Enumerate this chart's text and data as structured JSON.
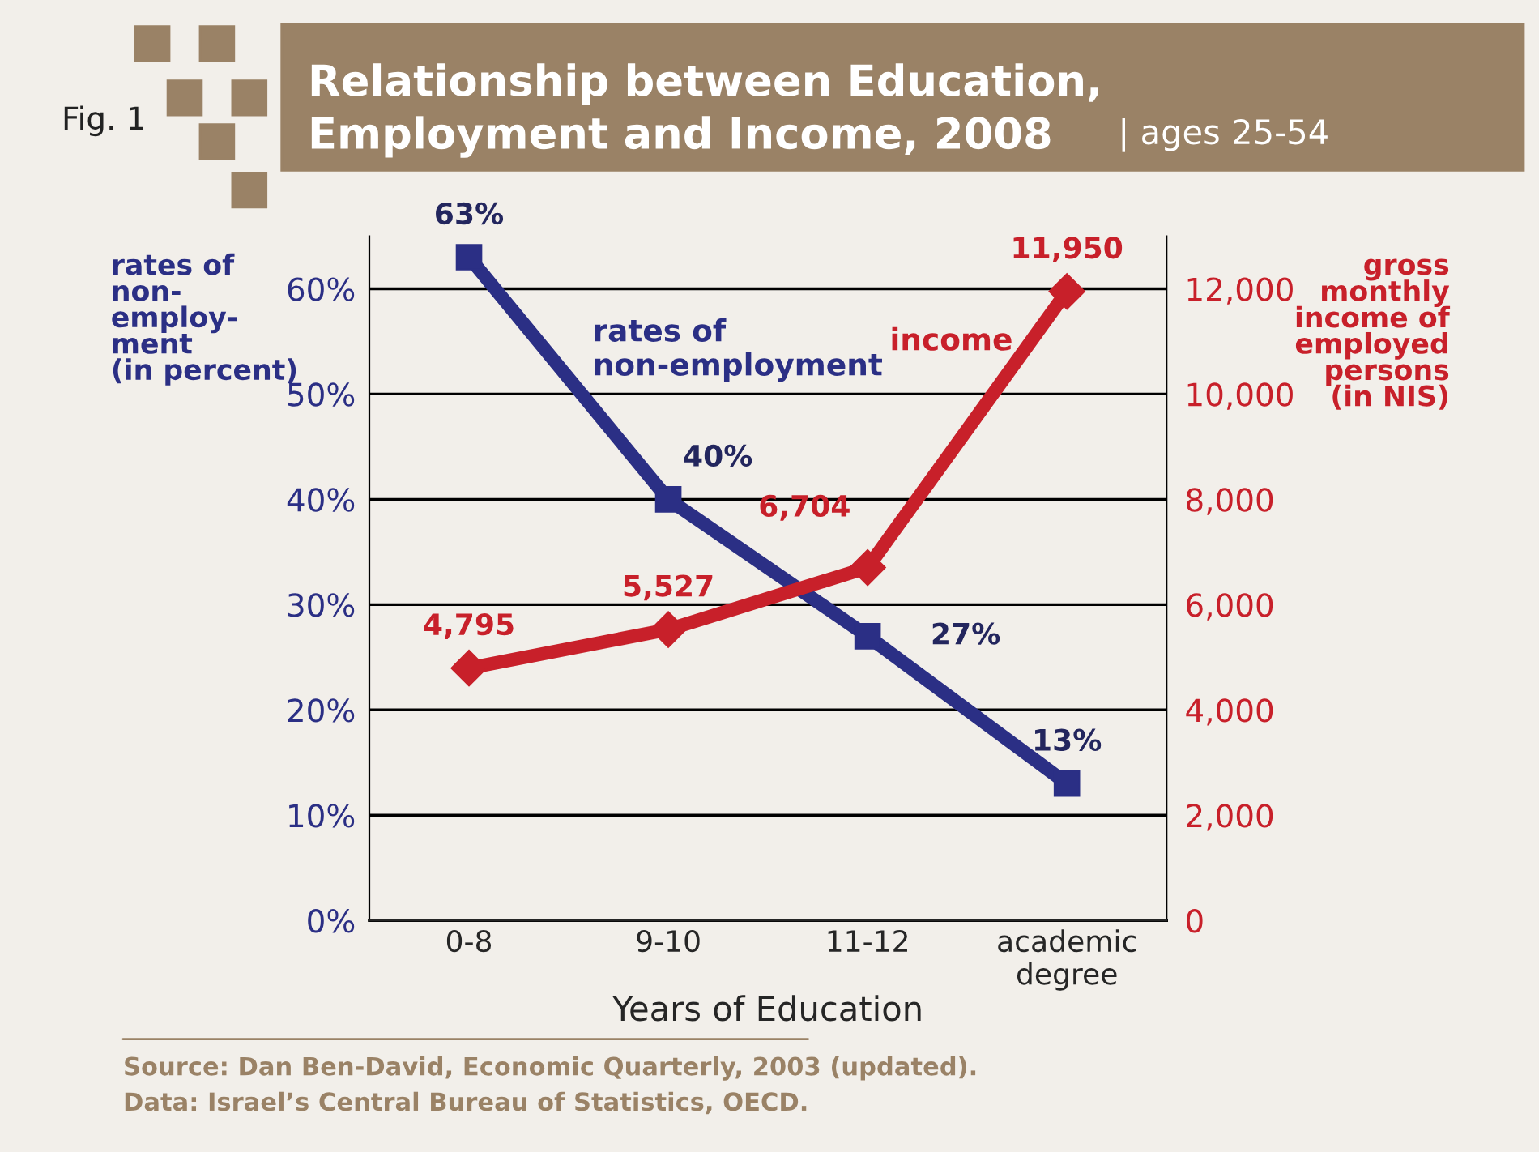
{
  "chart_data": {
    "type": "line",
    "title": "Relationship between Education,\nEmployment and Income, 2008",
    "subtitle": "| ages 25-54",
    "xlabel": "Years of Education",
    "ylabel": "rates of\nnon-\nemploy-\nment\n(in percent)",
    "y2label": "gross\nmonthly\nincome of\nemployed\npersons\n(in NIS)",
    "categories": [
      "0-8",
      "9-10",
      "11-12",
      "academic\ndegree"
    ],
    "series": [
      {
        "name": "rates of\nnon-employment",
        "color": "#2b2f85",
        "values": [
          63,
          40,
          27,
          13
        ],
        "marker": "square",
        "value_labels": [
          "63%",
          "40%",
          "27%",
          "13%"
        ]
      },
      {
        "name": "income",
        "color": "#c8202a",
        "values": [
          4795,
          5527,
          6704,
          11950
        ],
        "axis": "y2",
        "marker": "diamond",
        "value_labels": [
          "4,795",
          "5,527",
          "6,704",
          "11,950"
        ]
      }
    ],
    "ylim": [
      0,
      65
    ],
    "yticks": [
      {
        "value": 0,
        "label": "0%"
      },
      {
        "value": 10,
        "label": "10%"
      },
      {
        "value": 20,
        "label": "20%"
      },
      {
        "value": 30,
        "label": "30%"
      },
      {
        "value": 40,
        "label": "40%"
      },
      {
        "value": 50,
        "label": "50%"
      },
      {
        "value": 60,
        "label": "60%"
      }
    ],
    "y2lim": [
      0,
      13000
    ],
    "y2ticks": [
      0,
      {
        "value": 2000,
        "label": "2,000"
      },
      {
        "value": 4000,
        "label": "4,000"
      },
      {
        "value": 6000,
        "label": "6,000"
      },
      {
        "value": 8000,
        "label": "8,000"
      },
      {
        "value": 10000,
        "label": "10,000"
      },
      {
        "value": 12000,
        "label": "12,000"
      }
    ],
    "grid": "y",
    "legend": false,
    "line_style": "solid",
    "annotations": [
      "Fig. 1",
      "Source: Dan Ben-David, Economic Quarterly, 2003 (updated).\nData: Israel’s Central Bureau of Statistics, OECD."
    ]
  }
}
